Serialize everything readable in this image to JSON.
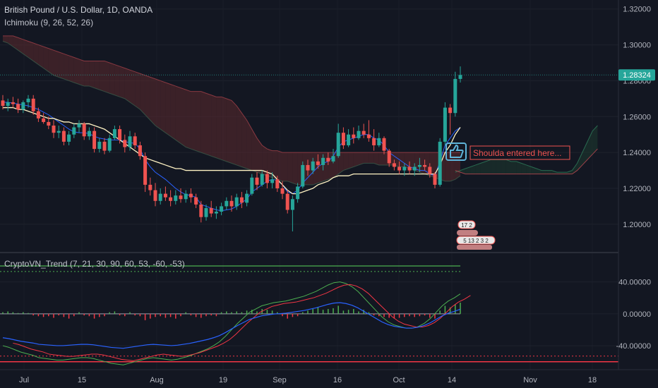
{
  "header": {
    "symbol_title": "British Pound / U.S. Dollar, 1D, OANDA",
    "ichimoku_label": "Ichimoku (9, 26, 52, 26)"
  },
  "oscillator": {
    "label": "CryptoVN_Trend (7, 21, 30, 90, 60, 53, -60, -53)",
    "ticks": [
      "40.00000",
      "0.00000",
      "-40.00000"
    ]
  },
  "price_axis": {
    "ticks": [
      "1.32000",
      "1.30000",
      "1.28000",
      "1.26000",
      "1.24000",
      "1.22000",
      "1.20000"
    ],
    "current_price": "1.28324"
  },
  "date_axis": {
    "labels": [
      "Jul",
      "15",
      "Aug",
      "19",
      "Sep",
      "16",
      "Oct",
      "14",
      "Nov",
      "18"
    ]
  },
  "annotation": {
    "text": "Shoulda entered here...",
    "icon": "thumbs-up-icon"
  },
  "badges": {
    "top": "17 2",
    "bottom": "5 13 2 3 2"
  },
  "colors": {
    "background": "#131722",
    "bullish": "#26a69a",
    "bearish": "#ef5350",
    "conversion": "#2962ff",
    "base": "#fff3c4",
    "cloud_bear": "#5c2a2e",
    "cloud_bull": "#1e3a2f",
    "osc_green": "#4caf50",
    "osc_red": "#f23645",
    "osc_blue": "#2962ff"
  },
  "chart_data": {
    "type": "candlestick",
    "title": "British Pound / U.S. Dollar, 1D, OANDA",
    "ylim": [
      1.185,
      1.325
    ],
    "yticks": [
      1.2,
      1.22,
      1.24,
      1.26,
      1.28,
      1.3,
      1.32
    ],
    "current_price": 1.28324,
    "ohlc": [
      [
        1.269,
        1.272,
        1.264,
        1.266
      ],
      [
        1.266,
        1.27,
        1.263,
        1.268
      ],
      [
        1.268,
        1.271,
        1.265,
        1.267
      ],
      [
        1.267,
        1.27,
        1.262,
        1.264
      ],
      [
        1.264,
        1.269,
        1.262,
        1.268
      ],
      [
        1.268,
        1.272,
        1.265,
        1.27
      ],
      [
        1.27,
        1.272,
        1.261,
        1.263
      ],
      [
        1.263,
        1.265,
        1.257,
        1.259
      ],
      [
        1.259,
        1.262,
        1.256,
        1.257
      ],
      [
        1.257,
        1.26,
        1.253,
        1.255
      ],
      [
        1.255,
        1.258,
        1.248,
        1.251
      ],
      [
        1.251,
        1.255,
        1.248,
        1.252
      ],
      [
        1.252,
        1.254,
        1.244,
        1.246
      ],
      [
        1.246,
        1.252,
        1.244,
        1.25
      ],
      [
        1.25,
        1.256,
        1.248,
        1.254
      ],
      [
        1.254,
        1.258,
        1.251,
        1.256
      ],
      [
        1.256,
        1.257,
        1.247,
        1.249
      ],
      [
        1.249,
        1.254,
        1.247,
        1.252
      ],
      [
        1.252,
        1.254,
        1.24,
        1.242
      ],
      [
        1.242,
        1.248,
        1.24,
        1.246
      ],
      [
        1.246,
        1.248,
        1.239,
        1.241
      ],
      [
        1.241,
        1.25,
        1.24,
        1.248
      ],
      [
        1.248,
        1.255,
        1.247,
        1.253
      ],
      [
        1.253,
        1.255,
        1.245,
        1.247
      ],
      [
        1.247,
        1.25,
        1.24,
        1.243
      ],
      [
        1.243,
        1.252,
        1.241,
        1.249
      ],
      [
        1.249,
        1.251,
        1.242,
        1.244
      ],
      [
        1.244,
        1.246,
        1.236,
        1.238
      ],
      [
        1.238,
        1.24,
        1.218,
        1.222
      ],
      [
        1.222,
        1.226,
        1.216,
        1.219
      ],
      [
        1.219,
        1.223,
        1.21,
        1.213
      ],
      [
        1.213,
        1.22,
        1.211,
        1.217
      ],
      [
        1.217,
        1.221,
        1.213,
        1.215
      ],
      [
        1.215,
        1.219,
        1.21,
        1.213
      ],
      [
        1.213,
        1.219,
        1.211,
        1.216
      ],
      [
        1.216,
        1.22,
        1.212,
        1.214
      ],
      [
        1.214,
        1.219,
        1.212,
        1.217
      ],
      [
        1.217,
        1.22,
        1.212,
        1.215
      ],
      [
        1.215,
        1.217,
        1.209,
        1.211
      ],
      [
        1.211,
        1.213,
        1.201,
        1.204
      ],
      [
        1.204,
        1.211,
        1.202,
        1.209
      ],
      [
        1.209,
        1.213,
        1.204,
        1.206
      ],
      [
        1.206,
        1.21,
        1.203,
        1.207
      ],
      [
        1.207,
        1.212,
        1.205,
        1.21
      ],
      [
        1.21,
        1.215,
        1.208,
        1.213
      ],
      [
        1.213,
        1.216,
        1.207,
        1.21
      ],
      [
        1.21,
        1.217,
        1.208,
        1.215
      ],
      [
        1.215,
        1.218,
        1.209,
        1.212
      ],
      [
        1.212,
        1.219,
        1.21,
        1.217
      ],
      [
        1.217,
        1.228,
        1.216,
        1.226
      ],
      [
        1.226,
        1.229,
        1.219,
        1.222
      ],
      [
        1.222,
        1.23,
        1.221,
        1.228
      ],
      [
        1.228,
        1.23,
        1.22,
        1.223
      ],
      [
        1.223,
        1.229,
        1.22,
        1.225
      ],
      [
        1.225,
        1.227,
        1.218,
        1.22
      ],
      [
        1.22,
        1.224,
        1.214,
        1.217
      ],
      [
        1.217,
        1.219,
        1.206,
        1.208
      ],
      [
        1.208,
        1.216,
        1.196,
        1.214
      ],
      [
        1.214,
        1.223,
        1.212,
        1.221
      ],
      [
        1.221,
        1.235,
        1.22,
        1.233
      ],
      [
        1.233,
        1.236,
        1.227,
        1.23
      ],
      [
        1.23,
        1.237,
        1.228,
        1.235
      ],
      [
        1.235,
        1.239,
        1.231,
        1.233
      ],
      [
        1.233,
        1.239,
        1.23,
        1.237
      ],
      [
        1.237,
        1.24,
        1.233,
        1.235
      ],
      [
        1.235,
        1.242,
        1.234,
        1.238
      ],
      [
        1.238,
        1.256,
        1.237,
        1.251
      ],
      [
        1.251,
        1.254,
        1.242,
        1.244
      ],
      [
        1.244,
        1.253,
        1.243,
        1.25
      ],
      [
        1.25,
        1.254,
        1.245,
        1.248
      ],
      [
        1.248,
        1.255,
        1.247,
        1.252
      ],
      [
        1.252,
        1.256,
        1.248,
        1.25
      ],
      [
        1.25,
        1.258,
        1.246,
        1.248
      ],
      [
        1.248,
        1.253,
        1.241,
        1.244
      ],
      [
        1.244,
        1.251,
        1.243,
        1.248
      ],
      [
        1.248,
        1.249,
        1.239,
        1.241
      ],
      [
        1.241,
        1.242,
        1.232,
        1.234
      ],
      [
        1.234,
        1.236,
        1.23,
        1.232
      ],
      [
        1.232,
        1.235,
        1.228,
        1.23
      ],
      [
        1.23,
        1.234,
        1.227,
        1.232
      ],
      [
        1.232,
        1.235,
        1.228,
        1.23
      ],
      [
        1.23,
        1.234,
        1.227,
        1.232
      ],
      [
        1.232,
        1.237,
        1.229,
        1.233
      ],
      [
        1.233,
        1.236,
        1.23,
        1.232
      ],
      [
        1.232,
        1.234,
        1.226,
        1.228
      ],
      [
        1.228,
        1.229,
        1.22,
        1.222
      ],
      [
        1.222,
        1.248,
        1.221,
        1.246
      ],
      [
        1.246,
        1.268,
        1.244,
        1.265
      ],
      [
        1.265,
        1.267,
        1.25,
        1.262
      ],
      [
        1.262,
        1.285,
        1.26,
        1.281
      ],
      [
        1.281,
        1.288,
        1.279,
        1.2832
      ]
    ],
    "tenkan": [
      1.268,
      1.268,
      1.2675,
      1.267,
      1.2665,
      1.266,
      1.265,
      1.264,
      1.2625,
      1.261,
      1.259,
      1.257,
      1.255,
      1.253,
      1.2515,
      1.251,
      1.251,
      1.2505,
      1.249,
      1.248,
      1.2475,
      1.247,
      1.247,
      1.247,
      1.246,
      1.2455,
      1.245,
      1.242,
      1.236,
      1.232,
      1.229,
      1.227,
      1.225,
      1.2225,
      1.22,
      1.218,
      1.2165,
      1.216,
      1.215,
      1.211,
      1.21,
      1.209,
      1.208,
      1.2075,
      1.208,
      1.2085,
      1.21,
      1.212,
      1.214,
      1.218,
      1.22,
      1.222,
      1.224,
      1.225,
      1.2245,
      1.222,
      1.218,
      1.217,
      1.219,
      1.223,
      1.226,
      1.229,
      1.232,
      1.234,
      1.235,
      1.238,
      1.243,
      1.246,
      1.247,
      1.248,
      1.249,
      1.25,
      1.25,
      1.248,
      1.247,
      1.244,
      1.24,
      1.238,
      1.236,
      1.234,
      1.232,
      1.231,
      1.23,
      1.23,
      1.228,
      1.227,
      1.235,
      1.244,
      1.248,
      1.252,
      1.254
    ],
    "kijun": [
      1.265,
      1.265,
      1.265,
      1.264,
      1.264,
      1.263,
      1.262,
      1.261,
      1.26,
      1.259,
      1.259,
      1.258,
      1.257,
      1.257,
      1.256,
      1.256,
      1.256,
      1.256,
      1.255,
      1.254,
      1.253,
      1.251,
      1.249,
      1.247,
      1.245,
      1.243,
      1.241,
      1.239,
      1.237,
      1.236,
      1.235,
      1.234,
      1.233,
      1.232,
      1.231,
      1.231,
      1.23,
      1.23,
      1.23,
      1.23,
      1.23,
      1.23,
      1.23,
      1.23,
      1.23,
      1.23,
      1.23,
      1.23,
      1.23,
      1.23,
      1.23,
      1.23,
      1.229,
      1.228,
      1.225,
      1.222,
      1.219,
      1.217,
      1.217,
      1.218,
      1.219,
      1.22,
      1.222,
      1.223,
      1.224,
      1.226,
      1.227,
      1.227,
      1.227,
      1.228,
      1.228,
      1.228,
      1.228,
      1.228,
      1.228,
      1.228,
      1.228,
      1.228,
      1.228,
      1.228,
      1.228,
      1.228,
      1.228,
      1.228,
      1.228,
      1.228,
      1.233,
      1.24,
      1.244,
      1.25,
      1.254
    ],
    "span_a": [
      1.302,
      1.301,
      1.299,
      1.297,
      1.295,
      1.293,
      1.291,
      1.289,
      1.287,
      1.285,
      1.283,
      1.282,
      1.281,
      1.28,
      1.279,
      1.278,
      1.277,
      1.277,
      1.276,
      1.275,
      1.274,
      1.273,
      1.272,
      1.271,
      1.27,
      1.268,
      1.266,
      1.264,
      1.261,
      1.258,
      1.255,
      1.253,
      1.251,
      1.249,
      1.247,
      1.245,
      1.243,
      1.242,
      1.241,
      1.24,
      1.239,
      1.238,
      1.237,
      1.236,
      1.235,
      1.234,
      1.233,
      1.232,
      1.231,
      1.23,
      1.229,
      1.228,
      1.227,
      1.226,
      1.225,
      1.224,
      1.224,
      1.223,
      1.222,
      1.222,
      1.222,
      1.222,
      1.223,
      1.224,
      1.225,
      1.226,
      1.228,
      1.23,
      1.231,
      1.232,
      1.233,
      1.234,
      1.234,
      1.234,
      1.233,
      1.233,
      1.233,
      1.233,
      1.232,
      1.232,
      1.231,
      1.23,
      1.229,
      1.228,
      1.227,
      1.226,
      1.225,
      1.224,
      1.224,
      1.225,
      1.227
    ],
    "span_b": [
      1.305,
      1.305,
      1.305,
      1.304,
      1.303,
      1.302,
      1.301,
      1.3,
      1.299,
      1.298,
      1.297,
      1.296,
      1.295,
      1.294,
      1.293,
      1.292,
      1.291,
      1.291,
      1.291,
      1.291,
      1.291,
      1.29,
      1.289,
      1.288,
      1.287,
      1.286,
      1.285,
      1.284,
      1.283,
      1.282,
      1.281,
      1.28,
      1.279,
      1.278,
      1.277,
      1.276,
      1.275,
      1.274,
      1.274,
      1.274,
      1.273,
      1.272,
      1.271,
      1.271,
      1.27,
      1.269,
      1.266,
      1.262,
      1.258,
      1.253,
      1.248,
      1.244,
      1.242,
      1.241,
      1.241,
      1.24,
      1.24,
      1.24,
      1.24,
      1.24,
      1.24,
      1.24,
      1.24,
      1.24,
      1.24,
      1.24,
      1.24,
      1.24,
      1.24,
      1.24,
      1.24,
      1.24,
      1.24,
      1.24,
      1.24,
      1.24,
      1.24,
      1.24,
      1.24,
      1.24,
      1.24,
      1.24,
      1.24,
      1.24,
      1.24,
      1.24,
      1.24,
      1.24,
      1.24,
      1.24,
      1.24
    ],
    "future_span_a": [
      1.229,
      1.23,
      1.231,
      1.232,
      1.233,
      1.234,
      1.235,
      1.236,
      1.236,
      1.236,
      1.236,
      1.235,
      1.235,
      1.234,
      1.233,
      1.232,
      1.231,
      1.23,
      1.23,
      1.23,
      1.229,
      1.229,
      1.229,
      1.23,
      1.234,
      1.24,
      1.246,
      1.252,
      1.255
    ],
    "future_span_b": [
      1.23,
      1.229,
      1.228,
      1.228,
      1.228,
      1.228,
      1.228,
      1.228,
      1.228,
      1.228,
      1.228,
      1.228,
      1.228,
      1.228,
      1.228,
      1.228,
      1.228,
      1.228,
      1.228,
      1.228,
      1.228,
      1.228,
      1.228,
      1.228,
      1.23,
      1.233,
      1.236,
      1.239,
      1.242
    ],
    "oscillator": {
      "ylim": [
        -70,
        75
      ],
      "yticks": [
        40,
        0,
        -40
      ],
      "upper_levels": [
        60,
        53
      ],
      "lower_levels": [
        -60,
        -53
      ],
      "histogram": [
        2,
        3,
        2,
        1,
        2,
        1,
        -2,
        -3,
        -4,
        -3,
        -5,
        -2,
        -4,
        -6,
        -3,
        2,
        -2,
        -3,
        -6,
        -4,
        -3,
        2,
        3,
        -2,
        -3,
        2,
        -2,
        -3,
        -8,
        -6,
        -4,
        -3,
        -5,
        -4,
        -6,
        -3,
        2,
        -2,
        -4,
        -5,
        -3,
        -2,
        -3,
        2,
        3,
        2,
        3,
        2,
        4,
        5,
        3,
        6,
        5,
        4,
        2,
        -3,
        -6,
        -4,
        -3,
        2,
        4,
        6,
        8,
        5,
        6,
        7,
        10,
        4,
        5,
        6,
        3,
        5,
        2,
        -2,
        -3,
        -4,
        -5,
        -6,
        -5,
        -4,
        -3,
        -4,
        -3,
        -2,
        -5,
        -6,
        4,
        10,
        8,
        12,
        14
      ],
      "green_line": [
        -40,
        -42,
        -45,
        -48,
        -50,
        -52,
        -55,
        -56,
        -57,
        -58,
        -58,
        -57,
        -56,
        -55,
        -55,
        -56,
        -58,
        -60,
        -62,
        -63,
        -64,
        -62,
        -60,
        -58,
        -56,
        -55,
        -56,
        -57,
        -58,
        -57,
        -55,
        -53,
        -50,
        -47,
        -44,
        -40,
        -35,
        -28,
        -20,
        -12,
        -5,
        2,
        6,
        10,
        12,
        14,
        15,
        16,
        18,
        20,
        22,
        25,
        28,
        32,
        36,
        39,
        40,
        38,
        34,
        28,
        20,
        12,
        4,
        -4,
        -10,
        -14,
        -16,
        -18,
        -18,
        -16,
        -12,
        -6,
        2,
        10,
        16,
        20,
        25
      ]
    }
  }
}
